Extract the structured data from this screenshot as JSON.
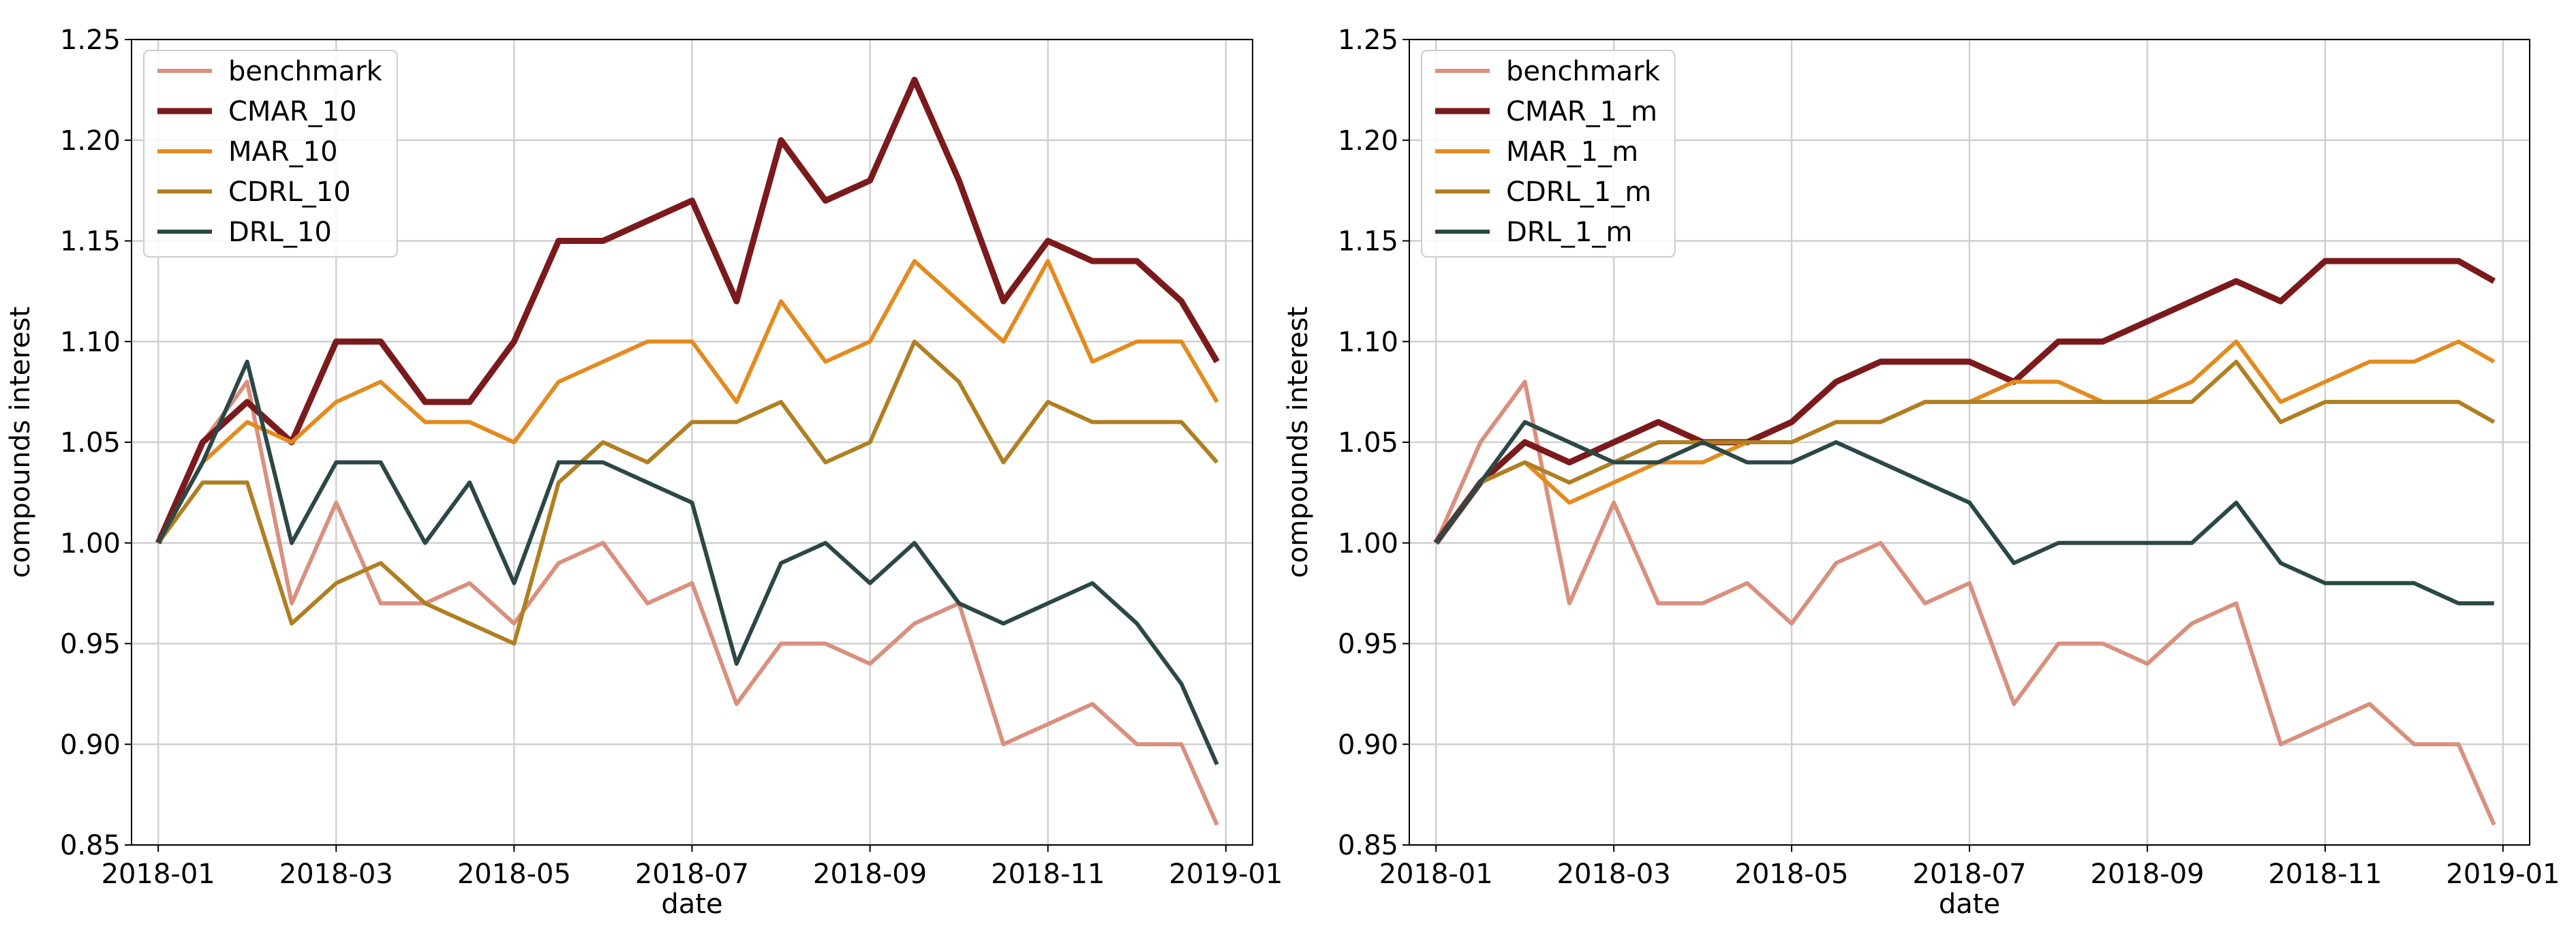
{
  "chart_data": [
    {
      "type": "line",
      "xlabel": "date",
      "ylabel": "compounds interest",
      "grid": true,
      "legend": "upper left",
      "x": [
        0,
        0.5,
        1,
        1.5,
        2,
        2.5,
        3,
        3.5,
        4,
        4.5,
        5,
        5.5,
        6,
        6.5,
        7,
        7.5,
        8,
        8.5,
        9,
        9.5,
        10,
        10.5,
        11,
        11.5,
        11.9
      ],
      "xlim": [
        -0.3,
        12.3
      ],
      "ylim": [
        0.85,
        1.25
      ],
      "xticks": [
        {
          "value": 0,
          "label": "2018-01"
        },
        {
          "value": 2,
          "label": "2018-03"
        },
        {
          "value": 4,
          "label": "2018-05"
        },
        {
          "value": 6,
          "label": "2018-07"
        },
        {
          "value": 8,
          "label": "2018-09"
        },
        {
          "value": 10,
          "label": "2018-11"
        },
        {
          "value": 12,
          "label": "2019-01"
        }
      ],
      "yticks": [
        0.85,
        {
          "value": 0.9,
          "label": "0.90"
        },
        0.95,
        {
          "value": 1.0,
          "label": "1.00"
        },
        1.05,
        {
          "value": 1.1,
          "label": "1.10"
        },
        1.15,
        {
          "value": 1.2,
          "label": "1.20"
        },
        1.25
      ],
      "series": [
        {
          "name": "benchmark",
          "color": "#d9907e",
          "values": [
            1.0,
            1.05,
            1.08,
            0.97,
            1.02,
            0.97,
            0.97,
            0.98,
            0.96,
            0.99,
            1.0,
            0.97,
            0.98,
            0.92,
            0.95,
            0.95,
            0.94,
            0.96,
            0.97,
            0.9,
            0.91,
            0.92,
            0.9,
            0.9,
            0.86
          ]
        },
        {
          "name": "CMAR_10",
          "color": "#7b1a1c",
          "values": [
            1.0,
            1.05,
            1.07,
            1.05,
            1.1,
            1.1,
            1.07,
            1.07,
            1.1,
            1.15,
            1.15,
            1.16,
            1.17,
            1.12,
            1.2,
            1.17,
            1.18,
            1.23,
            1.18,
            1.12,
            1.15,
            1.14,
            1.14,
            1.12,
            1.09
          ]
        },
        {
          "name": "MAR_10",
          "color": "#e38b1f",
          "values": [
            1.0,
            1.04,
            1.06,
            1.05,
            1.07,
            1.08,
            1.06,
            1.06,
            1.05,
            1.08,
            1.09,
            1.1,
            1.1,
            1.07,
            1.12,
            1.09,
            1.1,
            1.14,
            1.12,
            1.1,
            1.14,
            1.09,
            1.1,
            1.1,
            1.07
          ]
        },
        {
          "name": "CDRL_10",
          "color": "#b07f22",
          "values": [
            1.0,
            1.03,
            1.03,
            0.96,
            0.98,
            0.99,
            0.97,
            0.96,
            0.95,
            1.03,
            1.05,
            1.04,
            1.06,
            1.06,
            1.07,
            1.04,
            1.05,
            1.1,
            1.08,
            1.04,
            1.07,
            1.06,
            1.06,
            1.06,
            1.04
          ]
        },
        {
          "name": "DRL_10",
          "color": "#2b4746",
          "values": [
            1.0,
            1.04,
            1.09,
            1.0,
            1.04,
            1.04,
            1.0,
            1.03,
            0.98,
            1.04,
            1.04,
            1.03,
            1.02,
            0.94,
            0.99,
            1.0,
            0.98,
            1.0,
            0.97,
            0.96,
            0.97,
            0.98,
            0.96,
            0.93,
            0.89
          ]
        }
      ]
    },
    {
      "type": "line",
      "xlabel": "date",
      "ylabel": "compounds interest",
      "grid": true,
      "legend": "upper left",
      "x": [
        0,
        0.5,
        1,
        1.5,
        2,
        2.5,
        3,
        3.5,
        4,
        4.5,
        5,
        5.5,
        6,
        6.5,
        7,
        7.5,
        8,
        8.5,
        9,
        9.5,
        10,
        10.5,
        11,
        11.5,
        11.9
      ],
      "xlim": [
        -0.3,
        12.3
      ],
      "ylim": [
        0.85,
        1.25
      ],
      "xticks": [
        {
          "value": 0,
          "label": "2018-01"
        },
        {
          "value": 2,
          "label": "2018-03"
        },
        {
          "value": 4,
          "label": "2018-05"
        },
        {
          "value": 6,
          "label": "2018-07"
        },
        {
          "value": 8,
          "label": "2018-09"
        },
        {
          "value": 10,
          "label": "2018-11"
        },
        {
          "value": 12,
          "label": "2019-01"
        }
      ],
      "yticks": [
        0.85,
        {
          "value": 0.9,
          "label": "0.90"
        },
        0.95,
        {
          "value": 1.0,
          "label": "1.00"
        },
        1.05,
        {
          "value": 1.1,
          "label": "1.10"
        },
        1.15,
        {
          "value": 1.2,
          "label": "1.20"
        },
        1.25
      ],
      "series": [
        {
          "name": "benchmark",
          "color": "#d9907e",
          "values": [
            1.0,
            1.05,
            1.08,
            0.97,
            1.02,
            0.97,
            0.97,
            0.98,
            0.96,
            0.99,
            1.0,
            0.97,
            0.98,
            0.92,
            0.95,
            0.95,
            0.94,
            0.96,
            0.97,
            0.9,
            0.91,
            0.92,
            0.9,
            0.9,
            0.86
          ]
        },
        {
          "name": "CMAR_1_m",
          "color": "#7b1a1c",
          "values": [
            1.0,
            1.03,
            1.05,
            1.04,
            1.05,
            1.06,
            1.05,
            1.05,
            1.06,
            1.08,
            1.09,
            1.09,
            1.09,
            1.08,
            1.1,
            1.1,
            1.11,
            1.12,
            1.13,
            1.12,
            1.14,
            1.14,
            1.14,
            1.14,
            1.13
          ]
        },
        {
          "name": "MAR_1_m",
          "color": "#e38b1f",
          "values": [
            1.0,
            1.03,
            1.04,
            1.02,
            1.03,
            1.04,
            1.04,
            1.05,
            1.05,
            1.06,
            1.06,
            1.07,
            1.07,
            1.08,
            1.08,
            1.07,
            1.07,
            1.08,
            1.1,
            1.07,
            1.08,
            1.09,
            1.09,
            1.1,
            1.09
          ]
        },
        {
          "name": "CDRL_1_m",
          "color": "#b07f22",
          "values": [
            1.0,
            1.03,
            1.04,
            1.03,
            1.04,
            1.05,
            1.05,
            1.05,
            1.05,
            1.06,
            1.06,
            1.07,
            1.07,
            1.07,
            1.07,
            1.07,
            1.07,
            1.07,
            1.09,
            1.06,
            1.07,
            1.07,
            1.07,
            1.07,
            1.06
          ]
        },
        {
          "name": "DRL_1_m",
          "color": "#2b4746",
          "values": [
            1.0,
            1.03,
            1.06,
            1.05,
            1.04,
            1.04,
            1.05,
            1.04,
            1.04,
            1.05,
            1.04,
            1.03,
            1.02,
            0.99,
            1.0,
            1.0,
            1.0,
            1.0,
            1.02,
            0.99,
            0.98,
            0.98,
            0.98,
            0.97,
            0.97
          ]
        }
      ]
    }
  ]
}
